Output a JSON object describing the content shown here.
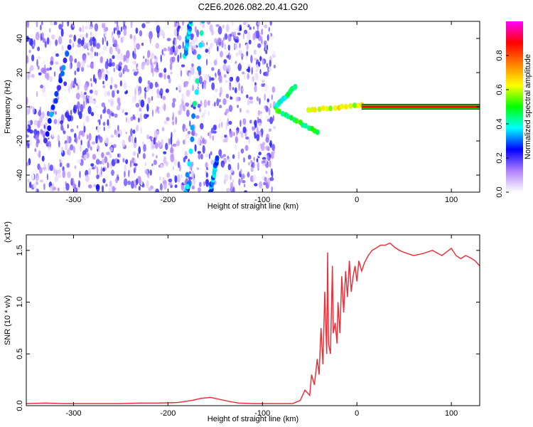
{
  "title": "C2E6.2026.082.20.41.G20",
  "chart_data": [
    {
      "type": "heatmap",
      "xlabel": "Height of straight line (km)",
      "ylabel": "Frequency (Hz)",
      "xlim": [
        -350,
        130
      ],
      "ylim": [
        -50,
        50
      ],
      "xticks": [
        -300,
        -200,
        -100,
        0,
        100
      ],
      "yticks": [
        -40,
        -20,
        0,
        20,
        40
      ],
      "colorbar": {
        "label": "Normalized spectral amplitude",
        "range": [
          0.0,
          1.0
        ],
        "ticks": [
          0.0,
          0.2,
          0.4,
          0.6,
          0.8
        ],
        "tick_labels": [
          "0.0",
          "0.2",
          "0.4",
          "0.6",
          "0.8"
        ],
        "colors": [
          "#ffffff",
          "#b080ff",
          "#0000ff",
          "#00ffff",
          "#00ff00",
          "#ffff00",
          "#ff7f00",
          "#ff0000",
          "#ff00ff"
        ]
      },
      "features": [
        {
          "name": "noise-region",
          "x_range": [
            -350,
            -87
          ],
          "freq_range": [
            -50,
            50
          ],
          "amplitude": 0.15
        },
        {
          "name": "streak-a",
          "from": [
            -330,
            -20
          ],
          "to": [
            -305,
            35
          ],
          "amplitude": 0.2
        },
        {
          "name": "streak-b",
          "from": [
            -181,
            -50
          ],
          "to": [
            -178,
            -45
          ],
          "amplitude": 0.22
        },
        {
          "name": "streak-c",
          "from": [
            -180,
            -47
          ],
          "to": [
            -163,
            50
          ],
          "amplitude": 0.3
        },
        {
          "name": "streak-d",
          "from": [
            -155,
            -50
          ],
          "to": [
            -148,
            -30
          ],
          "amplitude": 0.25
        },
        {
          "name": "streak-e",
          "from": [
            -182,
            30
          ],
          "to": [
            -176,
            50
          ],
          "amplitude": 0.28
        },
        {
          "name": "meteor-echo-upper",
          "from": [
            -86,
            0
          ],
          "to": [
            -65,
            12
          ],
          "amplitude": 0.35
        },
        {
          "name": "meteor-echo-lower",
          "from": [
            -85,
            -2
          ],
          "to": [
            -42,
            -15
          ],
          "amplitude": 0.4
        },
        {
          "name": "meteor-echo-main",
          "from": [
            -52,
            -2
          ],
          "to": [
            5,
            1
          ],
          "amplitude": 0.55
        },
        {
          "name": "steady-line",
          "from": [
            5,
            0
          ],
          "to": [
            130,
            0
          ],
          "amplitude": 1.0
        }
      ]
    },
    {
      "type": "line",
      "xlabel": "Height of straight line (km)",
      "ylabel": "SNR (10 * v/v)",
      "yscale_note": "(x10⁴)",
      "xlim": [
        -350,
        130
      ],
      "ylim": [
        0.0,
        1.65
      ],
      "xticks": [
        -300,
        -200,
        -100,
        0,
        100
      ],
      "yticks": [
        0.0,
        0.5,
        1.0,
        1.5
      ],
      "ytick_labels": [
        "0.0",
        "0.5",
        "1.0",
        "1.5"
      ],
      "series": [
        {
          "name": "SNR",
          "color": "#e8333c",
          "x": [
            -350,
            -330,
            -310,
            -290,
            -270,
            -250,
            -230,
            -210,
            -190,
            -175,
            -165,
            -155,
            -145,
            -135,
            -125,
            -110,
            -95,
            -80,
            -68,
            -60,
            -55,
            -50,
            -48,
            -45,
            -42,
            -40,
            -38,
            -36,
            -34,
            -32,
            -31,
            -30,
            -28,
            -26,
            -25,
            -23,
            -21,
            -20,
            -18,
            -16,
            -14,
            -12,
            -10,
            -8,
            -6,
            -4,
            -2,
            0,
            2,
            5,
            8,
            12,
            16,
            20,
            25,
            30,
            35,
            40,
            45,
            50,
            60,
            70,
            80,
            90,
            100,
            105,
            110,
            115,
            120,
            125,
            130
          ],
          "values": [
            0.02,
            0.025,
            0.02,
            0.02,
            0.02,
            0.02,
            0.025,
            0.025,
            0.03,
            0.05,
            0.07,
            0.08,
            0.06,
            0.04,
            0.025,
            0.02,
            0.02,
            0.02,
            0.02,
            0.05,
            0.15,
            0.1,
            0.3,
            0.2,
            0.45,
            0.3,
            0.75,
            0.4,
            1.1,
            0.5,
            1.48,
            0.6,
            0.5,
            1.35,
            0.7,
            0.8,
            0.6,
            1.0,
            0.7,
            1.25,
            0.9,
            1.3,
            1.05,
            1.4,
            1.1,
            1.25,
            1.35,
            1.2,
            1.4,
            1.3,
            1.38,
            1.45,
            1.5,
            1.52,
            1.55,
            1.55,
            1.57,
            1.53,
            1.5,
            1.48,
            1.45,
            1.47,
            1.5,
            1.45,
            1.52,
            1.45,
            1.42,
            1.45,
            1.43,
            1.4,
            1.35
          ]
        }
      ]
    }
  ]
}
